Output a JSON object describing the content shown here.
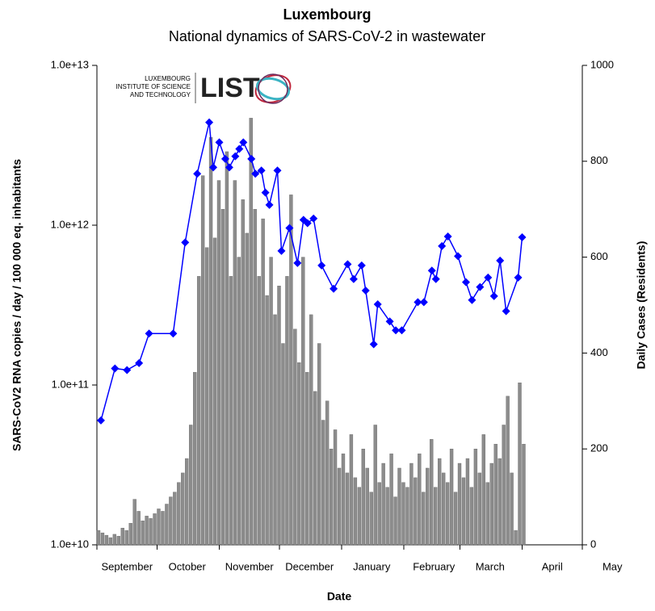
{
  "logo": {
    "text_lines": [
      "LUXEMBOURG",
      "INSTITUTE OF SCIENCE",
      "AND TECHNOLOGY"
    ],
    "wordmark": "LIST"
  },
  "chart_data": {
    "type": "bar-line",
    "title": "Luxembourg",
    "subtitle": "National dynamics of SARS-CoV-2 in wastewater",
    "x_label": "Date",
    "y_label": "SARS-CoV2 RNA copies / day  / 100 000 eq. inhabitants",
    "y2_label": "Daily Cases (Residents)",
    "xlim": [
      0,
      242
    ],
    "xticks": [
      {
        "value": 0,
        "label": "September"
      },
      {
        "value": 30,
        "label": "October"
      },
      {
        "value": 61,
        "label": "November"
      },
      {
        "value": 91,
        "label": "December"
      },
      {
        "value": 122,
        "label": "January"
      },
      {
        "value": 153,
        "label": "February"
      },
      {
        "value": 181,
        "label": "March"
      },
      {
        "value": 212,
        "label": "April"
      },
      {
        "value": 242,
        "label": "May"
      }
    ],
    "ylim": [
      10000000000.0,
      10000000000000.0
    ],
    "ylog": true,
    "yticks": [
      {
        "value": 10000000000.0,
        "label": "1.0e+10"
      },
      {
        "value": 100000000000.0,
        "label": "1.0e+11"
      },
      {
        "value": 1000000000000.0,
        "label": "1.0e+12"
      },
      {
        "value": 10000000000000.0,
        "label": "1.0e+13"
      }
    ],
    "y2lim": [
      0,
      1000
    ],
    "y2ticks": [
      0,
      200,
      400,
      600,
      800,
      1000
    ],
    "series": [
      {
        "type": "bar",
        "axis": "y2",
        "color": "#8c8c8c",
        "x": [
          0,
          2,
          4,
          6,
          8,
          10,
          12,
          14,
          16,
          18,
          20,
          22,
          24,
          26,
          28,
          30,
          32,
          34,
          36,
          38,
          40,
          42,
          44,
          46,
          48,
          50,
          52,
          54,
          56,
          58,
          60,
          62,
          64,
          66,
          68,
          70,
          72,
          74,
          76,
          78,
          80,
          82,
          84,
          86,
          88,
          90,
          92,
          94,
          96,
          98,
          100,
          102,
          104,
          106,
          108,
          110,
          112,
          114,
          116,
          118,
          120,
          122,
          124,
          126,
          128,
          130,
          132,
          134,
          136,
          138,
          140,
          142,
          144,
          146,
          148,
          150,
          152,
          154,
          156,
          158,
          160,
          162,
          164,
          166,
          168,
          170,
          172,
          174,
          176,
          178,
          180,
          182,
          184,
          186,
          188,
          190,
          192,
          194,
          196,
          198,
          200,
          202,
          204,
          206,
          208,
          210,
          212
        ],
        "values": [
          30,
          25,
          20,
          15,
          22,
          18,
          35,
          30,
          45,
          95,
          70,
          50,
          60,
          55,
          65,
          75,
          70,
          85,
          100,
          110,
          130,
          150,
          180,
          250,
          360,
          560,
          770,
          620,
          850,
          640,
          760,
          700,
          820,
          560,
          760,
          600,
          720,
          650,
          890,
          700,
          560,
          680,
          520,
          600,
          480,
          540,
          420,
          560,
          730,
          450,
          380,
          600,
          360,
          480,
          320,
          420,
          260,
          300,
          200,
          240,
          160,
          190,
          150,
          230,
          140,
          120,
          200,
          160,
          110,
          250,
          130,
          170,
          120,
          190,
          100,
          160,
          130,
          120,
          170,
          140,
          190,
          110,
          160,
          220,
          120,
          180,
          150,
          130,
          200,
          110,
          170,
          140,
          180,
          120,
          200,
          150,
          230,
          130,
          170,
          210,
          180,
          250,
          310,
          150,
          30,
          338,
          210
        ]
      },
      {
        "type": "line",
        "axis": "y",
        "color": "#0000ff",
        "x": [
          2,
          9,
          15,
          21,
          26,
          38,
          44,
          50,
          56,
          58,
          61,
          64,
          66,
          69,
          71,
          73,
          77,
          79,
          82,
          84,
          86,
          90,
          92,
          96,
          100,
          103,
          105,
          108,
          112,
          118,
          125,
          128,
          132,
          134,
          138,
          140,
          146,
          149,
          152,
          160,
          163,
          167,
          169,
          172,
          175,
          180,
          184,
          187,
          191,
          195,
          198,
          201,
          204,
          210,
          212
        ],
        "values": [
          60000000000.0,
          127000000000.0,
          124000000000.0,
          137000000000.0,
          210000000000.0,
          210000000000.0,
          780000000000.0,
          2100000000000.0,
          4400000000000.0,
          2300000000000.0,
          3300000000000.0,
          2600000000000.0,
          2300000000000.0,
          2700000000000.0,
          3000000000000.0,
          3300000000000.0,
          2600000000000.0,
          2100000000000.0,
          2200000000000.0,
          1600000000000.0,
          1340000000000.0,
          2200000000000.0,
          690000000000.0,
          960000000000.0,
          580000000000.0,
          1080000000000.0,
          1030000000000.0,
          1100000000000.0,
          560000000000.0,
          400000000000.0,
          570000000000.0,
          460000000000.0,
          560000000000.0,
          390000000000.0,
          180000000000.0,
          320000000000.0,
          250000000000.0,
          220000000000.0,
          220000000000.0,
          330000000000.0,
          330000000000.0,
          520000000000.0,
          460000000000.0,
          740000000000.0,
          850000000000.0,
          640000000000.0,
          440000000000.0,
          340000000000.0,
          410000000000.0,
          470000000000.0,
          360000000000.0,
          600000000000.0,
          290000000000.0,
          470000000000.0,
          840000000000.0
        ]
      }
    ]
  }
}
